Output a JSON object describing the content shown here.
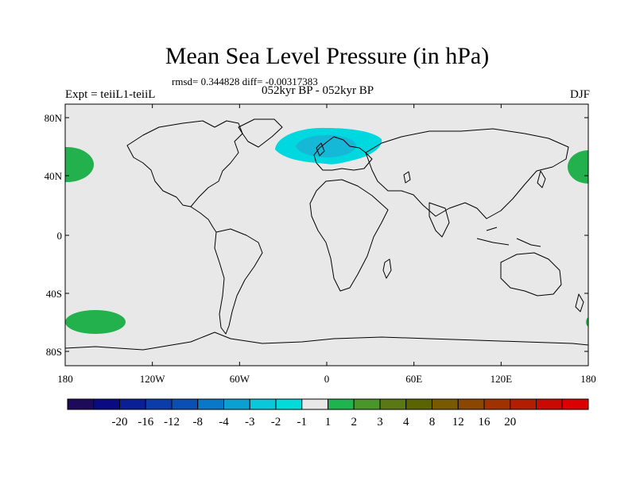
{
  "title": "Mean Sea Level Pressure (in hPa)",
  "stats": "rmsd= 0.344828 diff= -0.00317383",
  "left_label": "Expt = teiiL1-teiiL",
  "center_label": "052kyr BP - 052kyr BP",
  "right_label": "DJF",
  "lat_ticks": [
    "80N",
    "40N",
    "0",
    "40S",
    "80S"
  ],
  "lon_ticks": [
    "180",
    "120W",
    "60W",
    "0",
    "60E",
    "120E",
    "180"
  ],
  "colorbar": {
    "colors": [
      "#1e0a5a",
      "#0a0a82",
      "#0a1e96",
      "#0a3caa",
      "#0a50b4",
      "#0a78c8",
      "#0aa0d2",
      "#0ac8dc",
      "#00dcdc",
      "#e8e8e8",
      "#1eb450",
      "#4b9628",
      "#5a7814",
      "#5a6400",
      "#785a00",
      "#8c4600",
      "#a03200",
      "#b41e00",
      "#c80a00",
      "#dc0000"
    ],
    "labels": [
      "-20",
      "-16",
      "-12",
      "-8",
      "-4",
      "-3",
      "-2",
      "-1",
      "1",
      "2",
      "3",
      "4",
      "8",
      "12",
      "16",
      "20"
    ]
  },
  "map_colors": {
    "background": "#e8e8e8",
    "positive": "#22b14c",
    "negative_light": "#00d8e0",
    "negative_dark": "#16b8d8"
  }
}
